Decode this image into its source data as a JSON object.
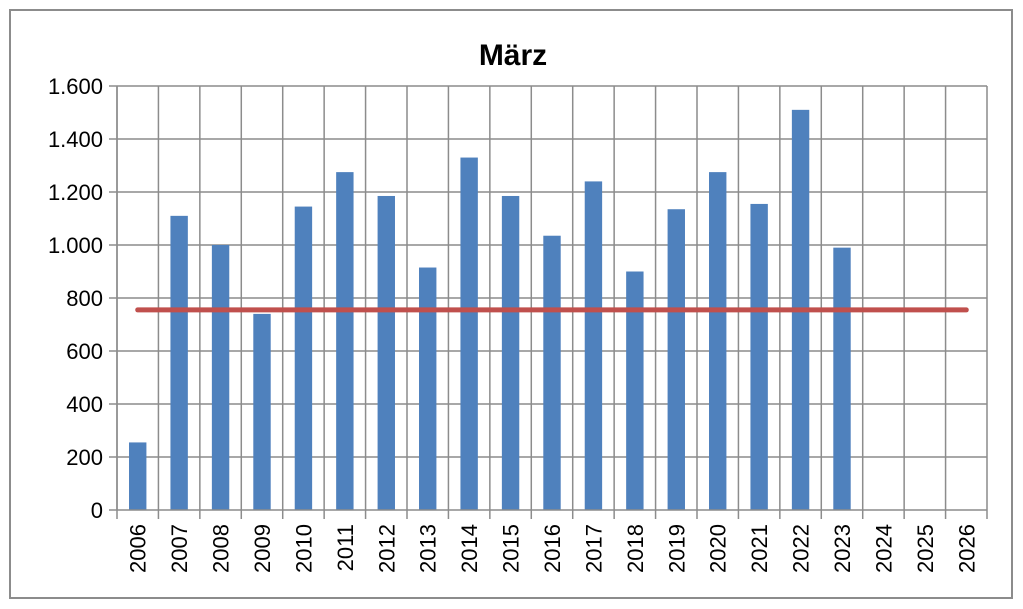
{
  "chart_data": {
    "type": "bar",
    "title": "März",
    "xlabel": "",
    "ylabel": "",
    "categories": [
      "2006",
      "2007",
      "2008",
      "2009",
      "2010",
      "2011",
      "2012",
      "2013",
      "2014",
      "2015",
      "2016",
      "2017",
      "2018",
      "2019",
      "2020",
      "2021",
      "2022",
      "2023",
      "2024",
      "2025",
      "2026"
    ],
    "series": [
      {
        "values": [
          255,
          1110,
          1000,
          740,
          1145,
          1275,
          1185,
          915,
          1330,
          1185,
          1035,
          1240,
          900,
          1135,
          1275,
          1155,
          1510,
          990,
          null,
          null,
          null
        ],
        "color": "#4f81bd"
      }
    ],
    "reference_line": {
      "value": 755,
      "color": "#c0504d"
    },
    "ylim": [
      0,
      1600
    ],
    "yticks": [
      0,
      200,
      400,
      600,
      800,
      1000,
      1200,
      1400,
      1600
    ],
    "ytick_labels": [
      "0",
      "200",
      "400",
      "600",
      "800",
      "1.000",
      "1.200",
      "1.400",
      "1.600"
    ],
    "grid": true,
    "legend": "none"
  }
}
